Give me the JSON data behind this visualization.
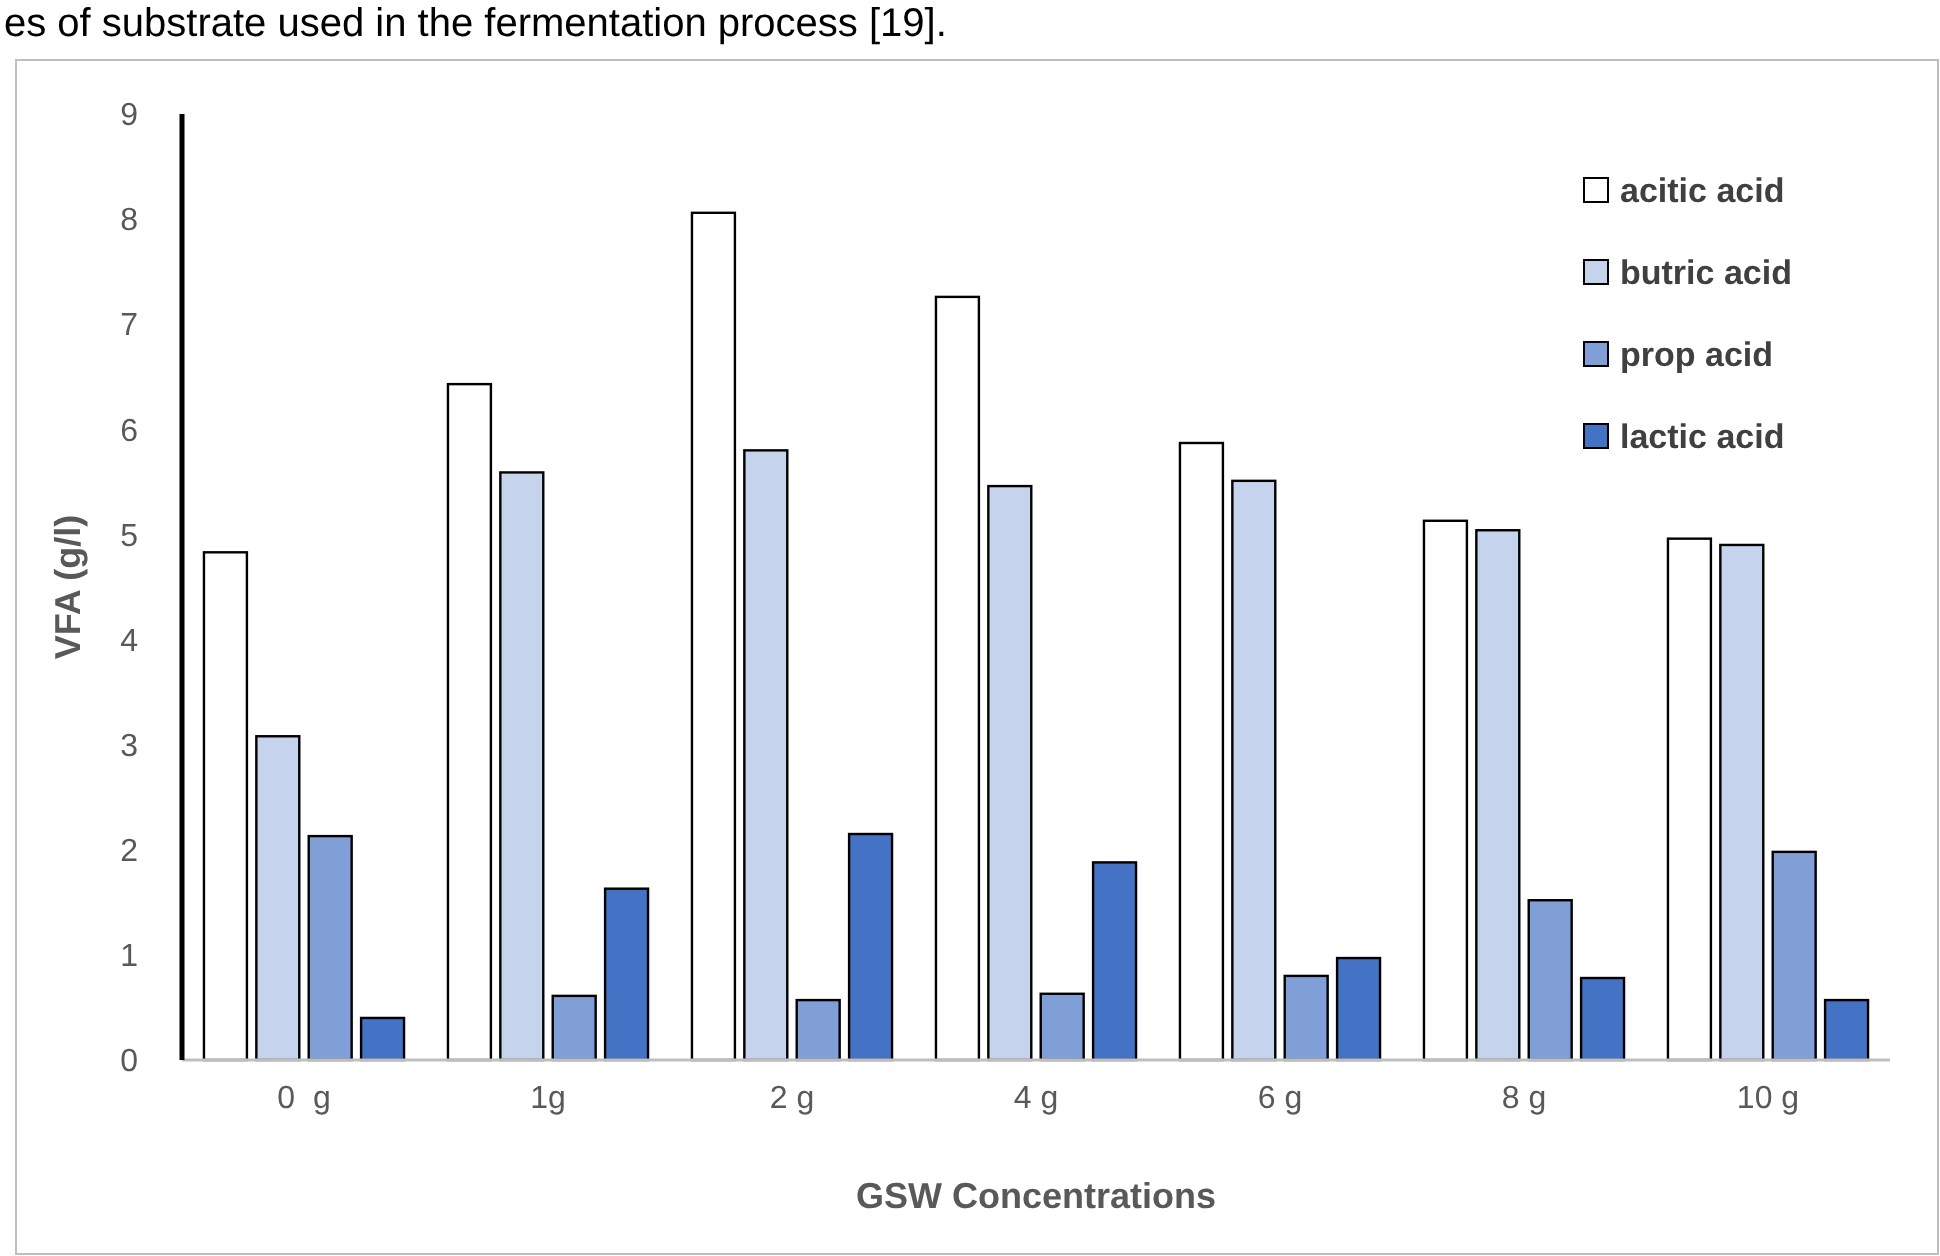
{
  "chart_data": {
    "type": "bar",
    "xlabel": "GSW Concentrations",
    "ylabel": "VFA (g/l)",
    "annotations": [
      "es of substrate used in the fermentation process [19]."
    ],
    "categories": [
      "0  g",
      "1g",
      "2 g",
      "4 g",
      "6 g",
      "8 g",
      "10 g"
    ],
    "series": [
      {
        "name": "acitic acid",
        "color": "#ffffff",
        "values": [
          4.83,
          6.43,
          8.06,
          7.26,
          5.87,
          5.13,
          4.96
        ]
      },
      {
        "name": "butric acid",
        "color": "#c5d3ed",
        "values": [
          3.08,
          5.59,
          5.8,
          5.46,
          5.51,
          5.04,
          4.9
        ]
      },
      {
        "name": "prop acid",
        "color": "#7f9fd6",
        "values": [
          2.13,
          0.61,
          0.57,
          0.63,
          0.8,
          1.52,
          1.98
        ]
      },
      {
        "name": "lactic acid",
        "color": "#4472c4",
        "values": [
          0.4,
          1.63,
          2.15,
          1.88,
          0.97,
          0.78,
          0.57
        ]
      }
    ],
    "ylim": [
      0,
      9
    ],
    "yticks": [
      0,
      1,
      2,
      3,
      4,
      5,
      6,
      7,
      8,
      9
    ],
    "grid": false,
    "legend": "top right"
  }
}
